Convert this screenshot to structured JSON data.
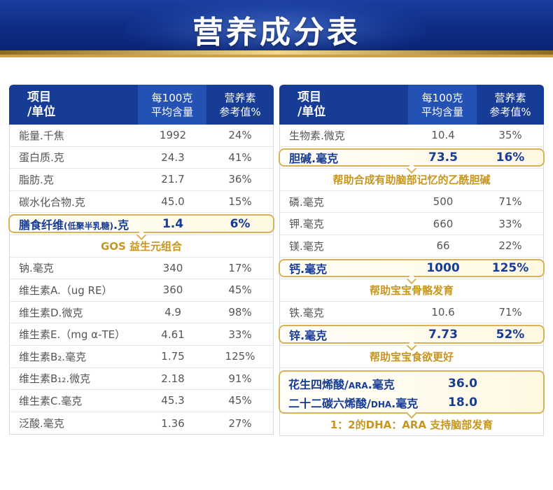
{
  "title": "营养成分表",
  "header": {
    "col1_line1": "项目",
    "col1_line2": "/单位",
    "col2_line1": "每100克",
    "col2_line2": "平均含量",
    "col3_line1": "营养素",
    "col3_line2": "参考值%"
  },
  "left_rows": [
    {
      "name": "能量.千焦",
      "amount": "1992",
      "pct": "24%"
    },
    {
      "name": "蛋白质.克",
      "amount": "24.3",
      "pct": "41%"
    },
    {
      "name": "脂肪.克",
      "amount": "21.7",
      "pct": "36%"
    },
    {
      "name": "碳水化合物.克",
      "amount": "45.0",
      "pct": "15%"
    },
    {
      "name_main": "膳食纤维",
      "name_small": "(低聚半乳糖)",
      "name_tail": ".克",
      "amount": "1.4",
      "pct": "6%"
    },
    {
      "note": "GOS 益生元组合"
    },
    {
      "name": "钠.毫克",
      "amount": "340",
      "pct": "17%"
    },
    {
      "name": "维生素A.（ug RE）",
      "amount": "360",
      "pct": "45%"
    },
    {
      "name": "维生素D.微克",
      "amount": "4.9",
      "pct": "98%"
    },
    {
      "name": "维生素E.（mg α-TE）",
      "amount": "4.61",
      "pct": "33%"
    },
    {
      "name": "维生素B₂.毫克",
      "amount": "1.75",
      "pct": "125%"
    },
    {
      "name": "维生素B₁₂.微克",
      "amount": "2.18",
      "pct": "91%"
    },
    {
      "name": "维生素C.毫克",
      "amount": "45.3",
      "pct": "45%"
    },
    {
      "name": "泛酸.毫克",
      "amount": "1.36",
      "pct": "27%"
    }
  ],
  "right_rows": [
    {
      "name": "生物素.微克",
      "amount": "10.4",
      "pct": "35%"
    },
    {
      "name": "胆碱.毫克",
      "amount": "73.5",
      "pct": "16%"
    },
    {
      "note": "帮助合成有助脑部记忆的乙酰胆碱"
    },
    {
      "name": "磷.毫克",
      "amount": "500",
      "pct": "71%"
    },
    {
      "name": "钾.毫克",
      "amount": "660",
      "pct": "33%"
    },
    {
      "name": "镁.毫克",
      "amount": "66",
      "pct": "22%"
    },
    {
      "name": "钙.毫克",
      "amount": "1000",
      "pct": "125%"
    },
    {
      "note": "帮助宝宝骨骼发育"
    },
    {
      "name": "铁.毫克",
      "amount": "10.6",
      "pct": "71%"
    },
    {
      "name": "锌.毫克",
      "amount": "7.73",
      "pct": "52%"
    },
    {
      "note": "帮助宝宝食欲更好"
    }
  ],
  "dha_box": [
    {
      "name_main": "花生四烯酸/",
      "name_small": "ARA",
      "name_tail": ".毫克",
      "amount": "36.0"
    },
    {
      "name_main": "二十二碳六烯酸/",
      "name_small": "DHA",
      "name_tail": ".毫克",
      "amount": "18.0"
    }
  ],
  "dha_note": "1：2的DHA：ARA  支持脑部发育"
}
